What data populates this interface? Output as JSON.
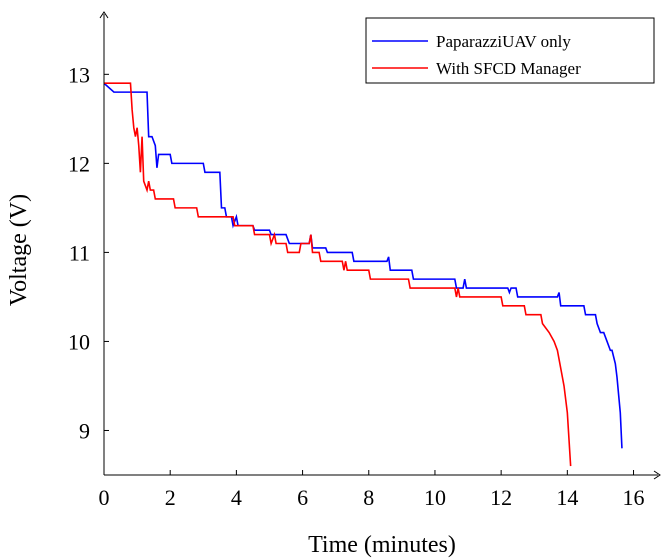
{
  "chart_data": {
    "type": "line",
    "xlabel": "Time (minutes)",
    "ylabel": "Voltage (V)",
    "xlim": [
      0,
      16.8
    ],
    "ylim": [
      8.5,
      13.7
    ],
    "xticks": [
      0,
      2,
      4,
      6,
      8,
      10,
      12,
      14,
      16
    ],
    "yticks": [
      9,
      10,
      11,
      12,
      13
    ],
    "xtick_labels": [
      "0",
      "2",
      "4",
      "6",
      "8",
      "10",
      "12",
      "14",
      "16"
    ],
    "ytick_labels": [
      "9",
      "10",
      "11",
      "12",
      "13"
    ],
    "legend_position": "top-right",
    "grid": false,
    "series": [
      {
        "name": "PaparazziUAV only",
        "color": "#0000ff",
        "points": [
          [
            0,
            12.9
          ],
          [
            0.3,
            12.8
          ],
          [
            1.3,
            12.8
          ],
          [
            1.35,
            12.3
          ],
          [
            1.45,
            12.3
          ],
          [
            1.55,
            12.2
          ],
          [
            1.6,
            11.95
          ],
          [
            1.65,
            12.1
          ],
          [
            2.0,
            12.1
          ],
          [
            2.05,
            12.0
          ],
          [
            3.0,
            12.0
          ],
          [
            3.05,
            11.9
          ],
          [
            3.5,
            11.9
          ],
          [
            3.55,
            11.5
          ],
          [
            3.65,
            11.5
          ],
          [
            3.7,
            11.4
          ],
          [
            3.85,
            11.4
          ],
          [
            3.9,
            11.3
          ],
          [
            4.0,
            11.4
          ],
          [
            4.05,
            11.3
          ],
          [
            4.5,
            11.3
          ],
          [
            4.55,
            11.25
          ],
          [
            5.0,
            11.25
          ],
          [
            5.05,
            11.2
          ],
          [
            5.5,
            11.2
          ],
          [
            5.55,
            11.15
          ],
          [
            5.6,
            11.1
          ],
          [
            6.2,
            11.1
          ],
          [
            6.25,
            11.2
          ],
          [
            6.3,
            11.05
          ],
          [
            6.7,
            11.05
          ],
          [
            6.75,
            11.0
          ],
          [
            7.5,
            11.0
          ],
          [
            7.55,
            10.9
          ],
          [
            8.55,
            10.9
          ],
          [
            8.6,
            10.95
          ],
          [
            8.65,
            10.8
          ],
          [
            9.3,
            10.8
          ],
          [
            9.35,
            10.7
          ],
          [
            10.6,
            10.7
          ],
          [
            10.65,
            10.6
          ],
          [
            10.85,
            10.6
          ],
          [
            10.9,
            10.7
          ],
          [
            10.95,
            10.6
          ],
          [
            12.2,
            10.6
          ],
          [
            12.25,
            10.55
          ],
          [
            12.3,
            10.6
          ],
          [
            12.45,
            10.6
          ],
          [
            12.5,
            10.5
          ],
          [
            13.7,
            10.5
          ],
          [
            13.75,
            10.55
          ],
          [
            13.8,
            10.4
          ],
          [
            14.5,
            10.4
          ],
          [
            14.55,
            10.3
          ],
          [
            14.85,
            10.3
          ],
          [
            14.9,
            10.2
          ],
          [
            15.0,
            10.1
          ],
          [
            15.1,
            10.1
          ],
          [
            15.2,
            10.0
          ],
          [
            15.3,
            9.9
          ],
          [
            15.35,
            9.9
          ],
          [
            15.45,
            9.75
          ],
          [
            15.5,
            9.6
          ],
          [
            15.55,
            9.4
          ],
          [
            15.6,
            9.2
          ],
          [
            15.65,
            8.8
          ]
        ]
      },
      {
        "name": "With SFCD Manager",
        "color": "#ff0000",
        "points": [
          [
            0,
            12.9
          ],
          [
            0.8,
            12.9
          ],
          [
            0.85,
            12.6
          ],
          [
            0.9,
            12.4
          ],
          [
            0.95,
            12.3
          ],
          [
            1.0,
            12.4
          ],
          [
            1.05,
            12.2
          ],
          [
            1.1,
            11.9
          ],
          [
            1.15,
            12.3
          ],
          [
            1.2,
            11.8
          ],
          [
            1.3,
            11.7
          ],
          [
            1.35,
            11.8
          ],
          [
            1.4,
            11.7
          ],
          [
            1.5,
            11.7
          ],
          [
            1.55,
            11.6
          ],
          [
            2.1,
            11.6
          ],
          [
            2.15,
            11.5
          ],
          [
            2.8,
            11.5
          ],
          [
            2.85,
            11.4
          ],
          [
            3.9,
            11.4
          ],
          [
            3.95,
            11.3
          ],
          [
            4.5,
            11.3
          ],
          [
            4.55,
            11.2
          ],
          [
            5.0,
            11.2
          ],
          [
            5.05,
            11.1
          ],
          [
            5.15,
            11.2
          ],
          [
            5.2,
            11.1
          ],
          [
            5.5,
            11.1
          ],
          [
            5.55,
            11.0
          ],
          [
            5.9,
            11.0
          ],
          [
            5.95,
            11.1
          ],
          [
            6.2,
            11.1
          ],
          [
            6.25,
            11.2
          ],
          [
            6.3,
            11.0
          ],
          [
            6.5,
            11.0
          ],
          [
            6.55,
            10.9
          ],
          [
            7.2,
            10.9
          ],
          [
            7.25,
            10.8
          ],
          [
            7.3,
            10.9
          ],
          [
            7.35,
            10.8
          ],
          [
            8.0,
            10.8
          ],
          [
            8.05,
            10.7
          ],
          [
            9.2,
            10.7
          ],
          [
            9.25,
            10.6
          ],
          [
            10.6,
            10.6
          ],
          [
            10.65,
            10.5
          ],
          [
            10.7,
            10.6
          ],
          [
            10.75,
            10.5
          ],
          [
            12.0,
            10.5
          ],
          [
            12.05,
            10.4
          ],
          [
            12.7,
            10.4
          ],
          [
            12.75,
            10.3
          ],
          [
            13.2,
            10.3
          ],
          [
            13.25,
            10.2
          ],
          [
            13.45,
            10.1
          ],
          [
            13.6,
            10.0
          ],
          [
            13.7,
            9.9
          ],
          [
            13.8,
            9.7
          ],
          [
            13.9,
            9.5
          ],
          [
            14.0,
            9.2
          ],
          [
            14.05,
            8.9
          ],
          [
            14.1,
            8.6
          ]
        ]
      }
    ]
  }
}
